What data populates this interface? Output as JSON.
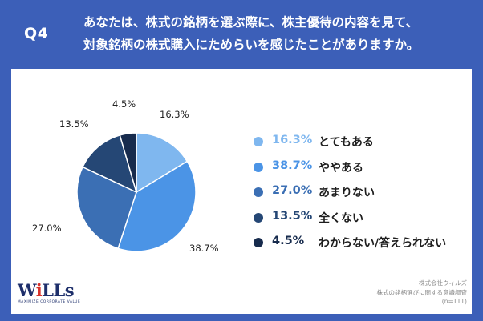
{
  "header": {
    "q_label": "Q4",
    "question_line1": "あなたは、株式の銘柄を選ぶ際に、株主優待の内容を見て、",
    "question_line2": "対象銘柄の株式購入にためらいを感じたことがありますか。"
  },
  "chart_data": {
    "type": "pie",
    "title": "",
    "slices": [
      {
        "label": "とてもある",
        "value": 16.3,
        "display": "16.3%",
        "color": "#7fb7ef"
      },
      {
        "label": "ややある",
        "value": 38.7,
        "display": "38.7%",
        "color": "#4b94e6"
      },
      {
        "label": "あまりない",
        "value": 27.0,
        "display": "27.0%",
        "color": "#3b6fb4"
      },
      {
        "label": "全くない",
        "value": 13.5,
        "display": "13.5%",
        "color": "#254775"
      },
      {
        "label": "わからない/答えられない",
        "value": 4.5,
        "display": "4.5%",
        "color": "#172b4d"
      }
    ],
    "legend_placement": "right"
  },
  "logo": {
    "w": "W",
    "i": "i",
    "lls": "LLs",
    "tagline": "MAXIMIZE CORPORATE VALUE"
  },
  "source": {
    "line1": "株式会社ウィルズ",
    "line2": "株式の銘柄選びに関する意識調査",
    "line3": "(n=111)"
  }
}
